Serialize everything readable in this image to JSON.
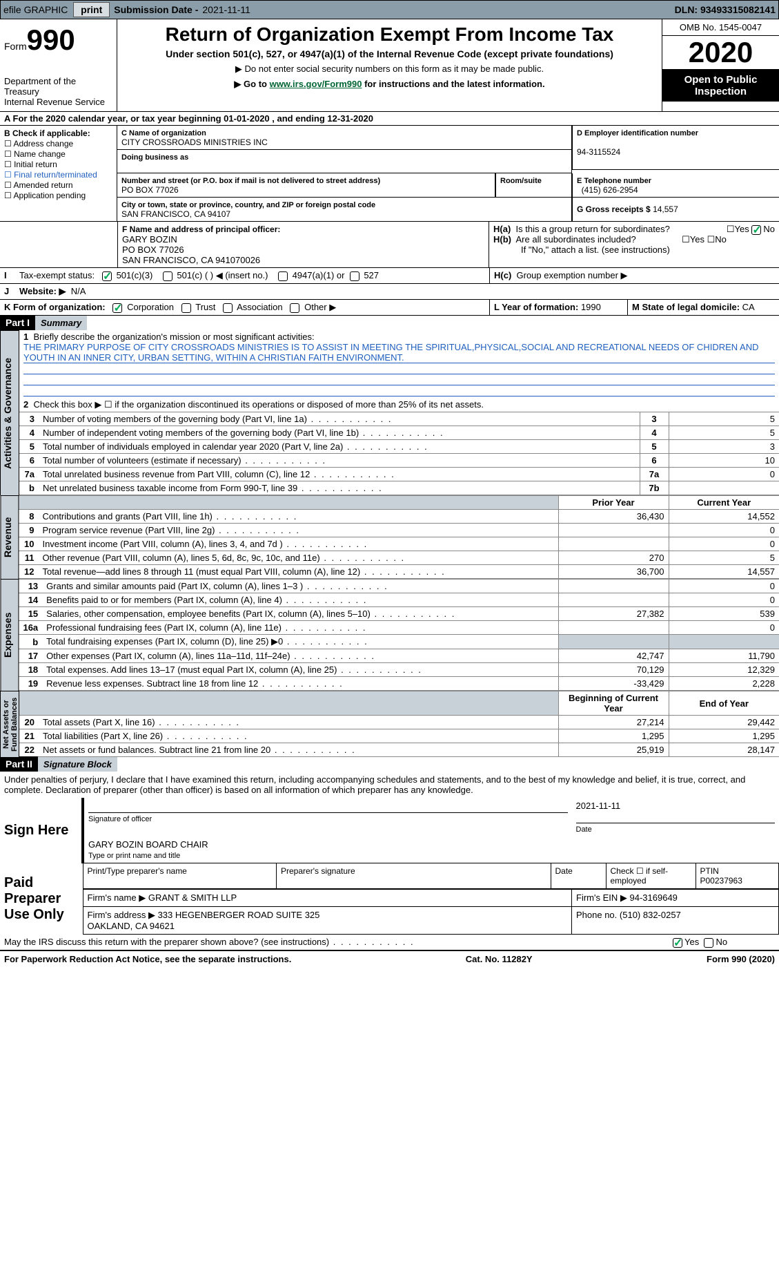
{
  "topbar": {
    "efile": "efile GRAPHIC",
    "print": "print",
    "subdate_lbl": "Submission Date - ",
    "subdate": "2021-11-11",
    "dln_lbl": "DLN: ",
    "dln": "93493315082141"
  },
  "header": {
    "form_prefix": "Form",
    "form_no": "990",
    "dept": "Department of the Treasury\nInternal Revenue Service",
    "title": "Return of Organization Exempt From Income Tax",
    "sub": "Under section 501(c), 527, or 4947(a)(1) of the Internal Revenue Code (except private foundations)",
    "note1": "▶ Do not enter social security numbers on this form as it may be made public.",
    "note2_pre": "▶ Go to ",
    "note2_link": "www.irs.gov/Form990",
    "note2_post": " for instructions and the latest information.",
    "omb": "OMB No. 1545-0047",
    "year": "2020",
    "open": "Open to Public\nInspection"
  },
  "rowA": "For the 2020 calendar year, or tax year beginning 01-01-2020    , and ending 12-31-2020",
  "colB": {
    "title": "B Check if applicable:",
    "items": [
      "Address change",
      "Name change",
      "Initial return",
      "Final return/terminated",
      "Amended return",
      "Application pending"
    ]
  },
  "boxC": {
    "lbl": "C Name of organization",
    "name": "CITY CROSSROADS MINISTRIES INC",
    "dba_lbl": "Doing business as",
    "addr_lbl": "Number and street (or P.O. box if mail is not delivered to street address)",
    "room_lbl": "Room/suite",
    "addr": "PO BOX 77026",
    "city_lbl": "City or town, state or province, country, and ZIP or foreign postal code",
    "city": "SAN FRANCISCO, CA  94107"
  },
  "boxD": {
    "lbl": "D Employer identification number",
    "val": "94-3115524"
  },
  "boxE": {
    "lbl": "E Telephone number",
    "val": "(415) 626-2954"
  },
  "boxG": {
    "lbl": "G Gross receipts $",
    "val": "14,557"
  },
  "boxF": {
    "lbl": "F Name and address of principal officer:",
    "name": "GARY BOZIN",
    "addr1": "PO BOX 77026",
    "addr2": "SAN FRANCISCO, CA  941070026"
  },
  "boxH": {
    "ha": "Is this a group return for subordinates?",
    "hb": "Are all subordinates included?",
    "hnote": "If \"No,\" attach a list. (see instructions)",
    "hc": "Group exemption number ▶",
    "yes": "Yes",
    "no": "No"
  },
  "rowI": {
    "lbl": "Tax-exempt status:",
    "o1": "501(c)(3)",
    "o2": "501(c) (  ) ◀ (insert no.)",
    "o3": "4947(a)(1) or",
    "o4": "527"
  },
  "rowJ": {
    "lbl": "Website: ▶",
    "val": "N/A"
  },
  "rowK": {
    "lbl": "K Form of organization:",
    "o1": "Corporation",
    "o2": "Trust",
    "o3": "Association",
    "o4": "Other ▶"
  },
  "rowL": {
    "lbl": "L Year of formation:",
    "val": "1990"
  },
  "rowM": {
    "lbl": "M State of legal domicile:",
    "val": "CA"
  },
  "part1": {
    "hdr": "Part I",
    "title": "Summary",
    "line1_lbl": "Briefly describe the organization's mission or most significant activities:",
    "mission": "THE PRIMARY PURPOSE OF CITY CROSSROADS MINISTRIES IS TO ASSIST IN MEETING THE SPIRITUAL,PHYSICAL,SOCIAL AND RECREATIONAL NEEDS OF CHIDREN AND YOUTH IN AN INNER CITY, URBAN SETTING, WITHIN A CHRISTIAN FAITH ENVIRONMENT.",
    "line2": "Check this box ▶ ☐ if the organization discontinued its operations or disposed of more than 25% of its net assets.",
    "gov_rows": [
      {
        "n": "3",
        "t": "Number of voting members of the governing body (Part VI, line 1a)",
        "b": "3",
        "v": "5"
      },
      {
        "n": "4",
        "t": "Number of independent voting members of the governing body (Part VI, line 1b)",
        "b": "4",
        "v": "5"
      },
      {
        "n": "5",
        "t": "Total number of individuals employed in calendar year 2020 (Part V, line 2a)",
        "b": "5",
        "v": "3"
      },
      {
        "n": "6",
        "t": "Total number of volunteers (estimate if necessary)",
        "b": "6",
        "v": "10"
      },
      {
        "n": "7a",
        "t": "Total unrelated business revenue from Part VIII, column (C), line 12",
        "b": "7a",
        "v": "0"
      },
      {
        "n": "b",
        "t": "Net unrelated business taxable income from Form 990-T, line 39",
        "b": "7b",
        "v": ""
      }
    ],
    "col_hdr_prior": "Prior Year",
    "col_hdr_curr": "Current Year",
    "rev_rows": [
      {
        "n": "8",
        "t": "Contributions and grants (Part VIII, line 1h)",
        "p": "36,430",
        "c": "14,552"
      },
      {
        "n": "9",
        "t": "Program service revenue (Part VIII, line 2g)",
        "p": "",
        "c": "0"
      },
      {
        "n": "10",
        "t": "Investment income (Part VIII, column (A), lines 3, 4, and 7d )",
        "p": "",
        "c": "0"
      },
      {
        "n": "11",
        "t": "Other revenue (Part VIII, column (A), lines 5, 6d, 8c, 9c, 10c, and 11e)",
        "p": "270",
        "c": "5"
      },
      {
        "n": "12",
        "t": "Total revenue—add lines 8 through 11 (must equal Part VIII, column (A), line 12)",
        "p": "36,700",
        "c": "14,557"
      }
    ],
    "exp_rows": [
      {
        "n": "13",
        "t": "Grants and similar amounts paid (Part IX, column (A), lines 1–3 )",
        "p": "",
        "c": "0"
      },
      {
        "n": "14",
        "t": "Benefits paid to or for members (Part IX, column (A), line 4)",
        "p": "",
        "c": "0"
      },
      {
        "n": "15",
        "t": "Salaries, other compensation, employee benefits (Part IX, column (A), lines 5–10)",
        "p": "27,382",
        "c": "539"
      },
      {
        "n": "16a",
        "t": "Professional fundraising fees (Part IX, column (A), line 11e)",
        "p": "",
        "c": "0"
      },
      {
        "n": "b",
        "t": "Total fundraising expenses (Part IX, column (D), line 25) ▶0",
        "p": "gray",
        "c": "gray"
      },
      {
        "n": "17",
        "t": "Other expenses (Part IX, column (A), lines 11a–11d, 11f–24e)",
        "p": "42,747",
        "c": "11,790"
      },
      {
        "n": "18",
        "t": "Total expenses. Add lines 13–17 (must equal Part IX, column (A), line 25)",
        "p": "70,129",
        "c": "12,329"
      },
      {
        "n": "19",
        "t": "Revenue less expenses. Subtract line 18 from line 12",
        "p": "-33,429",
        "c": "2,228"
      }
    ],
    "col_hdr_beg": "Beginning of Current Year",
    "col_hdr_end": "End of Year",
    "na_rows": [
      {
        "n": "20",
        "t": "Total assets (Part X, line 16)",
        "p": "27,214",
        "c": "29,442"
      },
      {
        "n": "21",
        "t": "Total liabilities (Part X, line 26)",
        "p": "1,295",
        "c": "1,295"
      },
      {
        "n": "22",
        "t": "Net assets or fund balances. Subtract line 21 from line 20",
        "p": "25,919",
        "c": "28,147"
      }
    ],
    "side_gov": "Activities & Governance",
    "side_rev": "Revenue",
    "side_exp": "Expenses",
    "side_na": "Net Assets or\nFund Balances"
  },
  "part2": {
    "hdr": "Part II",
    "title": "Signature Block",
    "decl": "Under penalties of perjury, I declare that I have examined this return, including accompanying schedules and statements, and to the best of my knowledge and belief, it is true, correct, and complete. Declaration of preparer (other than officer) is based on all information of which preparer has any knowledge.",
    "sign_here": "Sign Here",
    "sig_officer": "Signature of officer",
    "sig_date": "2021-11-11",
    "date_lbl": "Date",
    "officer_name": "GARY BOZIN  BOARD CHAIR",
    "officer_name_lbl": "Type or print name and title",
    "paid": "Paid Preparer Use Only",
    "prep_name_lbl": "Print/Type preparer's name",
    "prep_sig_lbl": "Preparer's signature",
    "prep_date_lbl": "Date",
    "prep_self_lbl": "Check ☐ if self-employed",
    "ptin_lbl": "PTIN",
    "ptin": "P00237963",
    "firm_name_lbl": "Firm's name   ▶",
    "firm_name": "GRANT & SMITH LLP",
    "firm_ein_lbl": "Firm's EIN ▶",
    "firm_ein": "94-3169649",
    "firm_addr_lbl": "Firm's address ▶",
    "firm_addr": "333 HEGENBERGER ROAD SUITE 325\nOAKLAND, CA  94621",
    "firm_phone_lbl": "Phone no.",
    "firm_phone": "(510) 832-0257",
    "discuss": "May the IRS discuss this return with the preparer shown above? (see instructions)"
  },
  "footer": {
    "pra": "For Paperwork Reduction Act Notice, see the separate instructions.",
    "cat": "Cat. No. 11282Y",
    "form": "Form 990 (2020)"
  }
}
